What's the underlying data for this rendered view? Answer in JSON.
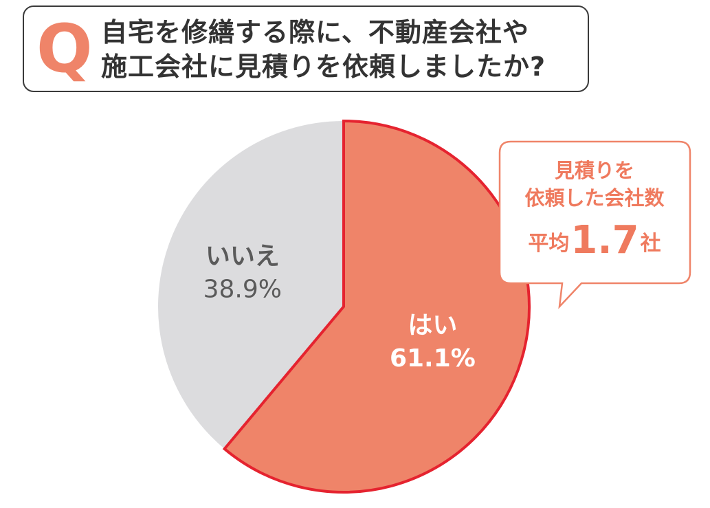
{
  "question": {
    "letter": "Q",
    "line1": "自宅を修繕する際に、不動産会社や",
    "line2": "施工会社に見積りを依頼しましたか?"
  },
  "chart_data": {
    "type": "pie",
    "slices": [
      {
        "label": "はい",
        "value": 61.1,
        "value_label": "61.1%",
        "color": "#ef8469",
        "text_color": "#ffffff",
        "border": "#e5232f"
      },
      {
        "label": "いいえ",
        "value": 38.9,
        "value_label": "38.9%",
        "color": "#dcdcde",
        "text_color": "#5a5a5a"
      }
    ],
    "start": "12 o'clock",
    "direction": "clockwise"
  },
  "callout": {
    "line1": "見積りを",
    "line2": "依頼した会社数",
    "avg_prefix": "平均",
    "avg_value": "1.7",
    "avg_suffix": "社",
    "border_color": "#ef8469",
    "text_color": "#ef7a5e"
  }
}
